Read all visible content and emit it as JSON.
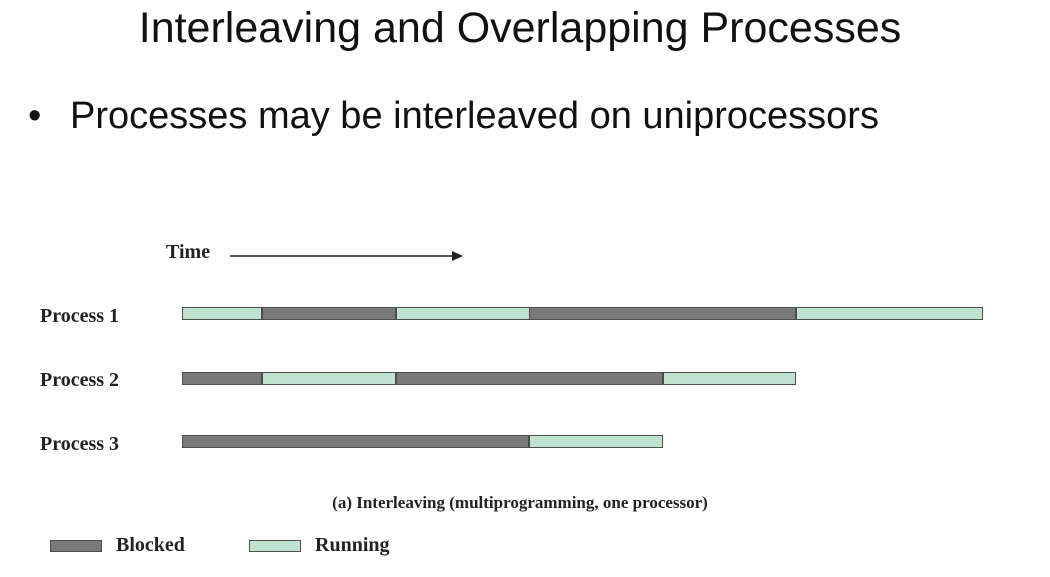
{
  "slide": {
    "title": "Interleaving and Overlapping Processes",
    "bullet": "Processes may be interleaved on uniprocessors"
  },
  "diagram": {
    "time_label": "Time",
    "caption": "(a) Interleaving (multiprogramming, one processor)",
    "processes": [
      {
        "label": "Process 1",
        "segments": [
          {
            "state": "running",
            "start": 0,
            "end": 0.6
          },
          {
            "state": "blocked",
            "start": 0.6,
            "end": 1.6
          },
          {
            "state": "running",
            "start": 1.6,
            "end": 2.6
          },
          {
            "state": "blocked",
            "start": 2.6,
            "end": 4.6
          },
          {
            "state": "running",
            "start": 4.6,
            "end": 6.0
          }
        ]
      },
      {
        "label": "Process 2",
        "segments": [
          {
            "state": "blocked",
            "start": 0,
            "end": 0.6
          },
          {
            "state": "running",
            "start": 0.6,
            "end": 1.6
          },
          {
            "state": "blocked",
            "start": 1.6,
            "end": 3.6
          },
          {
            "state": "running",
            "start": 3.6,
            "end": 4.6
          }
        ]
      },
      {
        "label": "Process 3",
        "segments": [
          {
            "state": "blocked",
            "start": 0,
            "end": 2.6
          },
          {
            "state": "running",
            "start": 2.6,
            "end": 3.6
          }
        ]
      }
    ],
    "legend": {
      "blocked": "Blocked",
      "running": "Running"
    },
    "colors": {
      "blocked": "#7a7a7a",
      "running": "#bfe3cf"
    }
  }
}
